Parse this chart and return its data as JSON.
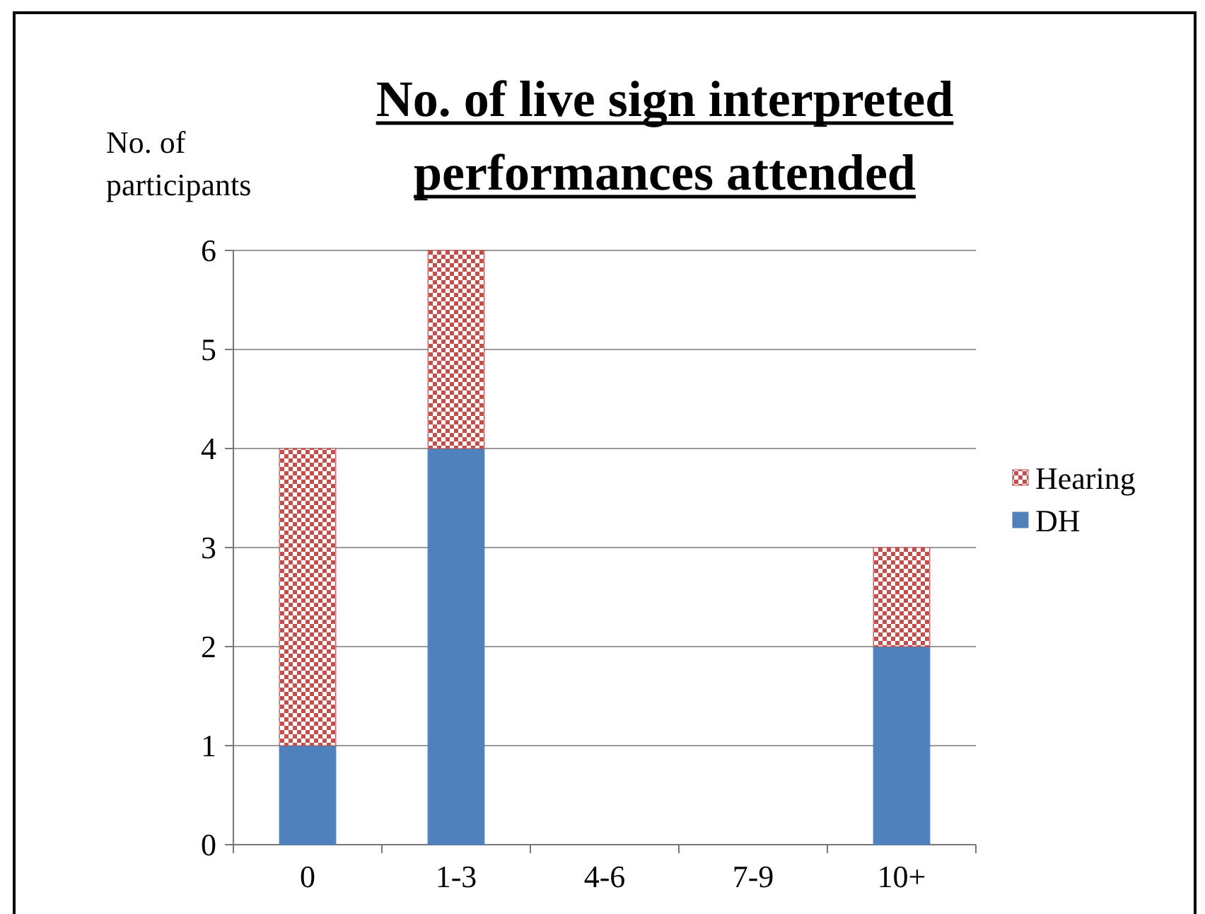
{
  "chart_data": {
    "type": "bar",
    "title": "No. of live sign interpreted performances attended",
    "ylabel": "No. of participants",
    "categories": [
      "0",
      "1-3",
      "4-6",
      "7-9",
      "10+"
    ],
    "stacked": true,
    "series": [
      {
        "name": "DH",
        "color": "#4f81bd",
        "values": [
          1,
          4,
          0,
          0,
          2
        ]
      },
      {
        "name": "Hearing",
        "color": "#c0504d",
        "values": [
          3,
          2,
          0,
          0,
          1
        ]
      }
    ],
    "ylim": [
      0,
      6
    ],
    "yticks": [
      0,
      1,
      2,
      3,
      4,
      5,
      6
    ],
    "grid": "y",
    "legend": "right"
  }
}
